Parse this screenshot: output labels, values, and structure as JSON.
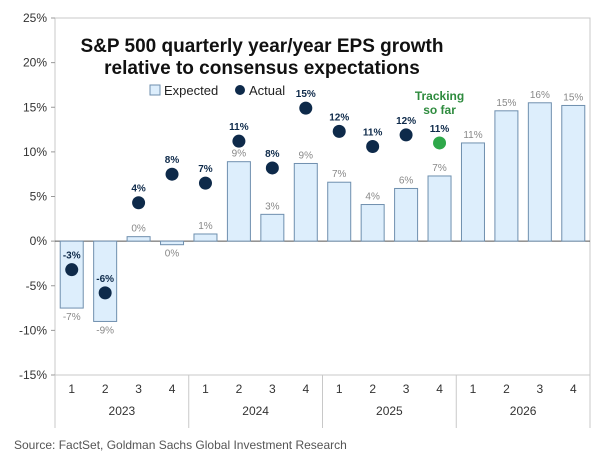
{
  "chart_data": {
    "type": "bar",
    "title_lines": [
      "S&P 500 quarterly year/year EPS growth",
      "relative to consensus expectations"
    ],
    "legend": {
      "expected": "Expected",
      "actual": "Actual",
      "tracking": "Tracking so far"
    },
    "tracking_lines": [
      "Tracking",
      "so far"
    ],
    "yticks": [
      25,
      20,
      15,
      10,
      5,
      0,
      -5,
      -10,
      -15
    ],
    "ytick_labels": [
      "25%",
      "20%",
      "15%",
      "10%",
      "5%",
      "0%",
      "-5%",
      "-10%",
      "-15%"
    ],
    "ylim": [
      -15,
      25
    ],
    "quarters": [
      "1",
      "2",
      "3",
      "4",
      "1",
      "2",
      "3",
      "4",
      "1",
      "2",
      "3",
      "4",
      "1",
      "2",
      "3",
      "4"
    ],
    "years": [
      "2023",
      "2024",
      "2025",
      "2026"
    ],
    "series": [
      {
        "name": "Expected",
        "values": [
          -7.5,
          -9,
          0.5,
          -0.4,
          0.8,
          8.9,
          3.0,
          8.7,
          6.6,
          4.1,
          5.9,
          7.3,
          11.0,
          14.6,
          15.5,
          15.2
        ],
        "labels": [
          "-7%",
          "-9%",
          "0%",
          "0%",
          "1%",
          "9%",
          "3%",
          "9%",
          "7%",
          "4%",
          "6%",
          "7%",
          "11%",
          "15%",
          "16%",
          "15%"
        ]
      },
      {
        "name": "Actual",
        "values": [
          -3.2,
          -5.8,
          4.3,
          7.5,
          6.5,
          11.2,
          8.2,
          14.9,
          12.3,
          10.6,
          11.9,
          11.0
        ],
        "labels": [
          "-3%",
          "-6%",
          "4%",
          "8%",
          "7%",
          "11%",
          "8%",
          "15%",
          "12%",
          "11%",
          "12%",
          "11%"
        ]
      }
    ],
    "colors": {
      "expected_fill": "#ddeefc",
      "expected_stroke": "#6f8fae",
      "actual": "#0e2a4a",
      "tracking": "#2ea84a"
    }
  },
  "source": "Source: FactSet, Goldman Sachs Global Investment Research"
}
